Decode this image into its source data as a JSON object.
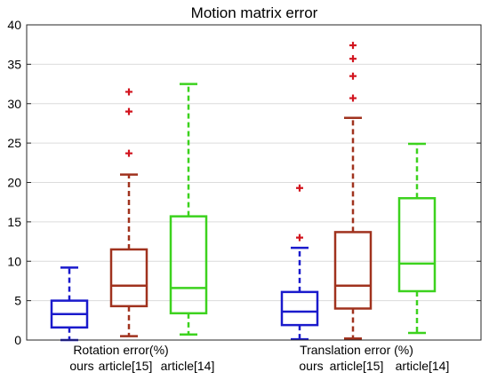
{
  "chart_data": {
    "type": "box",
    "title": "Motion matrix error",
    "ylim": [
      0,
      40
    ],
    "yticks": [
      0,
      5,
      10,
      15,
      20,
      25,
      30,
      35,
      40
    ],
    "grid": "horizontal",
    "groups": [
      {
        "label": "Rotation error(%)",
        "boxes": [
          {
            "name": "ours",
            "color": "#1a1acc",
            "whisker_low": 0.0,
            "q1": 1.6,
            "median": 3.3,
            "q3": 5.0,
            "whisker_high": 9.2,
            "outliers": []
          },
          {
            "name": "article[15]",
            "color": "#a0321e",
            "whisker_low": 0.5,
            "q1": 4.3,
            "median": 6.9,
            "q3": 11.5,
            "whisker_high": 21.0,
            "outliers": [
              23.7,
              29.0,
              31.5
            ]
          },
          {
            "name": "article[14]",
            "color": "#3cd21e",
            "whisker_low": 0.7,
            "q1": 3.4,
            "median": 6.6,
            "q3": 15.7,
            "whisker_high": 32.5,
            "outliers": []
          }
        ]
      },
      {
        "label": "Translation error (%)",
        "boxes": [
          {
            "name": "ours",
            "color": "#1a1acc",
            "whisker_low": 0.1,
            "q1": 1.9,
            "median": 3.6,
            "q3": 6.1,
            "whisker_high": 11.7,
            "outliers": [
              13.0,
              19.3
            ]
          },
          {
            "name": "article[15]",
            "color": "#a0321e",
            "whisker_low": 0.2,
            "q1": 4.0,
            "median": 6.9,
            "q3": 13.7,
            "whisker_high": 28.2,
            "outliers": [
              30.7,
              33.5,
              35.7,
              37.4
            ]
          },
          {
            "name": "article[14]",
            "color": "#3cd21e",
            "whisker_low": 0.9,
            "q1": 6.2,
            "median": 9.7,
            "q3": 18.0,
            "whisker_high": 24.9,
            "outliers": []
          }
        ]
      }
    ]
  }
}
